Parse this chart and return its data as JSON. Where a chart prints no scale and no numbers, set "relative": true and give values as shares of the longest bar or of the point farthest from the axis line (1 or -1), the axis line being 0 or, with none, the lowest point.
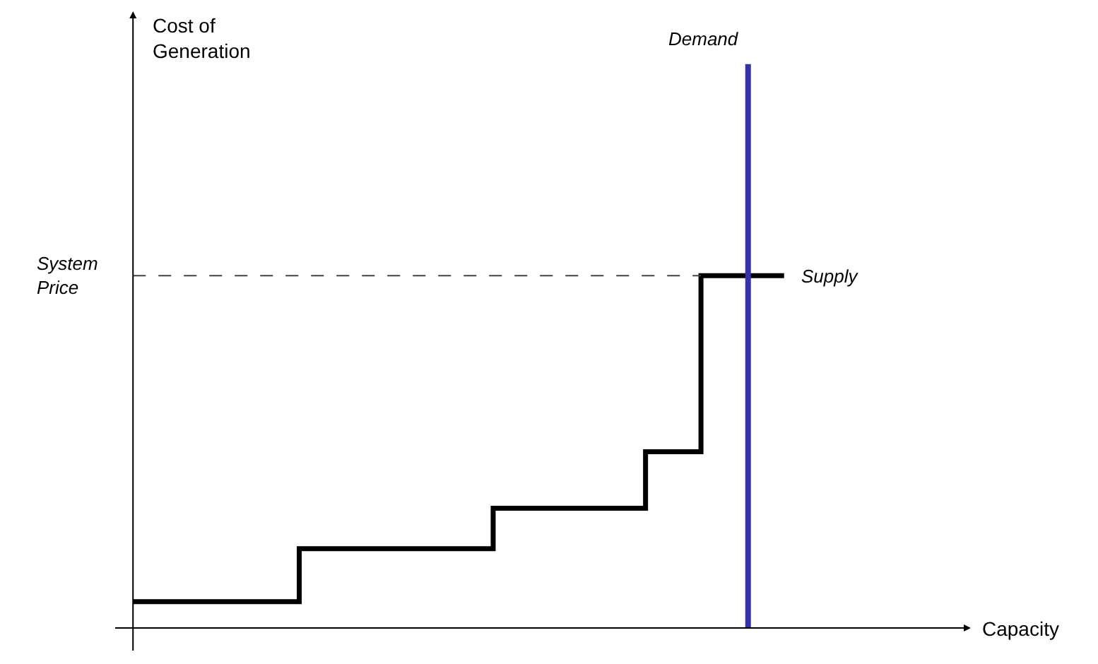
{
  "chart_data": {
    "type": "step",
    "relative": true,
    "annotations": [
      "Cost of Generation",
      "Capacity",
      "Demand"
    ],
    "categories": [
      null,
      null,
      null,
      null,
      null,
      null,
      null,
      null,
      null,
      null,
      null,
      null,
      null,
      null,
      null,
      null,
      null,
      null,
      null,
      null,
      null,
      null,
      null,
      null,
      null,
      null,
      null,
      null,
      null,
      null,
      null,
      null,
      null,
      null,
      null,
      null,
      null,
      null,
      null,
      null,
      null,
      null,
      null,
      null,
      null,
      null,
      null,
      null
    ],
    "series": [
      {
        "name": "Supply",
        "color": "#000000",
        "values": [
          0.075,
          0.075,
          0.075,
          0.075,
          0.075,
          0.075,
          0.075,
          0.075,
          0.075,
          0.075,
          0.075,
          0.075,
          0.225,
          0.225,
          0.225,
          0.225,
          0.225,
          0.225,
          0.225,
          0.225,
          0.225,
          0.225,
          0.225,
          0.225,
          0.225,
          0.225,
          0.34,
          0.34,
          0.34,
          0.34,
          0.34,
          0.34,
          0.34,
          0.34,
          0.34,
          0.34,
          0.34,
          0.5,
          0.5,
          0.5,
          0.5,
          1,
          1,
          1,
          1,
          1,
          1,
          1
        ]
      }
    ],
    "ref_lines": [
      {
        "axis": "y",
        "value": 1,
        "label": "System Price",
        "color": "#444444",
        "line_style": "dashed"
      }
    ],
    "grid": false,
    "legend": false
  }
}
